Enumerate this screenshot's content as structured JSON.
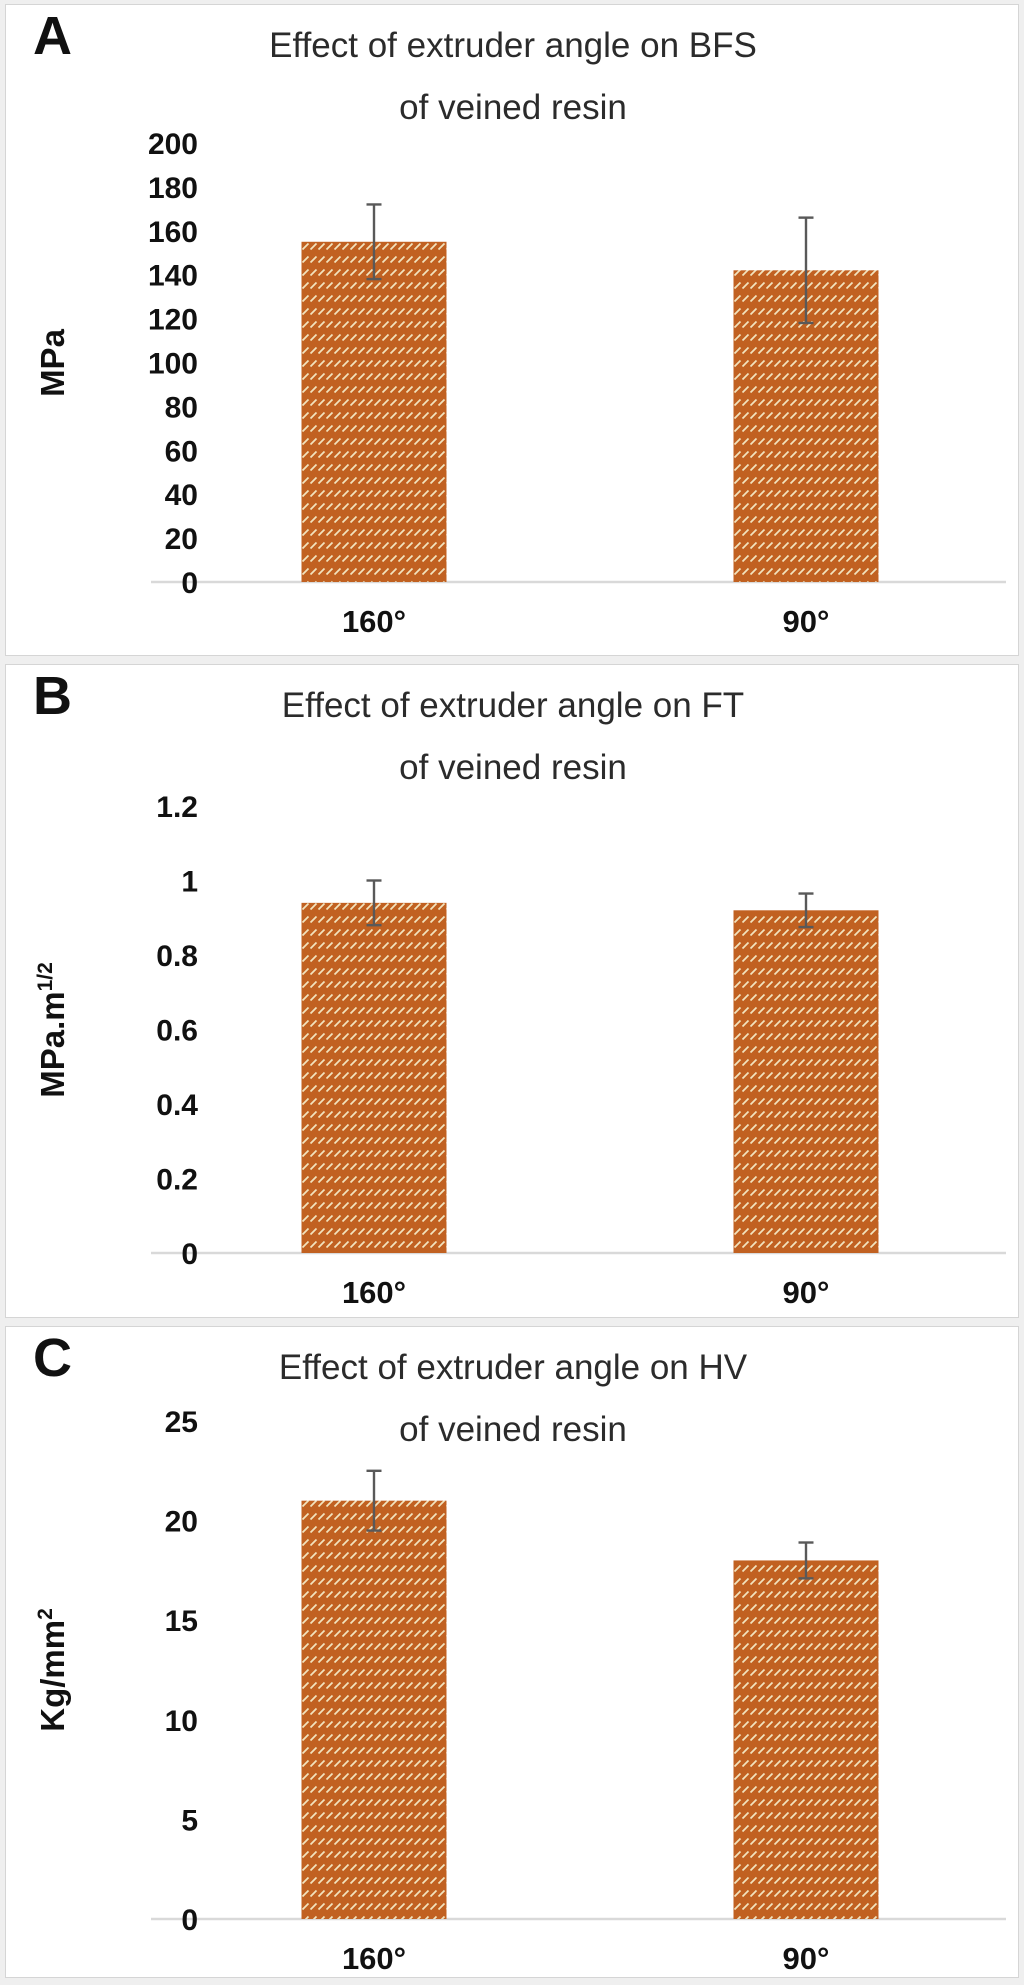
{
  "colors": {
    "bar_fill": "#c16121",
    "bar_hatch": "#f2e3bd",
    "error_bar": "#595959",
    "axis_line": "#d9d9d9",
    "text": "#111111"
  },
  "chart_data": [
    {
      "type": "bar",
      "panel_label": "A",
      "title_line1": "Effect of extruder angle on BFS",
      "title_line2": "of veined resin",
      "ylabel_base": "MPa",
      "ylabel_sup": "",
      "categories": [
        "160°",
        "90°"
      ],
      "values": [
        155,
        142
      ],
      "errors": [
        17,
        24
      ],
      "ylim": [
        0,
        200
      ],
      "ytick_step": 20,
      "grid": false,
      "legend": "none"
    },
    {
      "type": "bar",
      "panel_label": "B",
      "title_line1": "Effect of extruder angle on FT",
      "title_line2": "of veined resin",
      "ylabel_base": "MPa.m",
      "ylabel_sup": "1/2",
      "categories": [
        "160°",
        "90°"
      ],
      "values": [
        0.94,
        0.92
      ],
      "errors": [
        0.06,
        0.045
      ],
      "ylim": [
        0,
        1.2
      ],
      "ytick_step": 0.2,
      "grid": false,
      "legend": "none"
    },
    {
      "type": "bar",
      "panel_label": "C",
      "title_line1": "Effect of extruder angle on HV",
      "title_line2": "of veined resin",
      "ylabel_base": "Kg/mm",
      "ylabel_sup": "2",
      "categories": [
        "160°",
        "90°"
      ],
      "values": [
        21,
        18
      ],
      "errors": [
        1.5,
        0.9
      ],
      "ylim": [
        0,
        25
      ],
      "ytick_step": 5,
      "grid": false,
      "legend": "none"
    }
  ]
}
